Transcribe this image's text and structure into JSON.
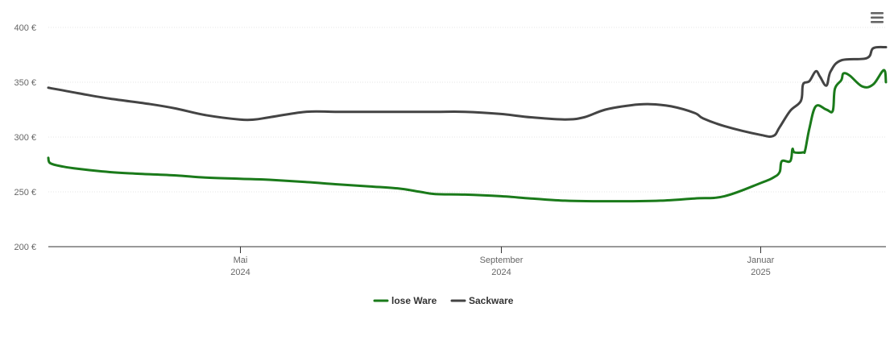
{
  "menu": {
    "icon": "hamburger-menu-icon"
  },
  "chart_data": {
    "type": "line",
    "title": "",
    "xlabel": "",
    "ylabel": "",
    "y_unit": "€",
    "ylim": [
      200,
      400
    ],
    "y_ticks": [
      {
        "value": 200,
        "label": "200 €"
      },
      {
        "value": 250,
        "label": "250 €"
      },
      {
        "value": 300,
        "label": "300 €"
      },
      {
        "value": 350,
        "label": "350 €"
      },
      {
        "value": 400,
        "label": "400 €"
      }
    ],
    "xlim": [
      "2024-02-01",
      "2025-03-01"
    ],
    "x_ticks": [
      {
        "date": "2024-05-01",
        "label": "Mai",
        "sublabel": "2024"
      },
      {
        "date": "2024-09-01",
        "label": "September",
        "sublabel": "2024"
      },
      {
        "date": "2025-01-01",
        "label": "Januar",
        "sublabel": "2025"
      }
    ],
    "grid": true,
    "legend_position": "bottom-center",
    "series": [
      {
        "name": "lose Ware",
        "color": "#1a7a1a",
        "points": [
          [
            "2024-02-01",
            281
          ],
          [
            "2024-02-02",
            276
          ],
          [
            "2024-02-08",
            273
          ],
          [
            "2024-02-15",
            271
          ],
          [
            "2024-03-01",
            268
          ],
          [
            "2024-03-15",
            266.5
          ],
          [
            "2024-04-01",
            265
          ],
          [
            "2024-04-15",
            263
          ],
          [
            "2024-05-01",
            262
          ],
          [
            "2024-05-15",
            261
          ],
          [
            "2024-06-01",
            259
          ],
          [
            "2024-06-15",
            257
          ],
          [
            "2024-07-01",
            255
          ],
          [
            "2024-07-15",
            253
          ],
          [
            "2024-07-25",
            250
          ],
          [
            "2024-08-01",
            248
          ],
          [
            "2024-08-15",
            247.5
          ],
          [
            "2024-09-01",
            246
          ],
          [
            "2024-09-15",
            244
          ],
          [
            "2024-10-01",
            242
          ],
          [
            "2024-10-15",
            241.5
          ],
          [
            "2024-11-01",
            241.5
          ],
          [
            "2024-11-15",
            242
          ],
          [
            "2024-12-01",
            244
          ],
          [
            "2024-12-15",
            246
          ],
          [
            "2025-01-01",
            258
          ],
          [
            "2025-01-07",
            263
          ],
          [
            "2025-01-10",
            268
          ],
          [
            "2025-01-11",
            278
          ],
          [
            "2025-01-15",
            278
          ],
          [
            "2025-01-16",
            289
          ],
          [
            "2025-01-17",
            286
          ],
          [
            "2025-01-21",
            286
          ],
          [
            "2025-01-22",
            288
          ],
          [
            "2025-01-24",
            308
          ],
          [
            "2025-01-27",
            328
          ],
          [
            "2025-02-01",
            325
          ],
          [
            "2025-02-04",
            324
          ],
          [
            "2025-02-05",
            344
          ],
          [
            "2025-02-08",
            352
          ],
          [
            "2025-02-09",
            358
          ],
          [
            "2025-02-12",
            356
          ],
          [
            "2025-02-18",
            346
          ],
          [
            "2025-02-23",
            348
          ],
          [
            "2025-02-28",
            361
          ],
          [
            "2025-03-01",
            350
          ]
        ]
      },
      {
        "name": "Sackware",
        "color": "#444444",
        "points": [
          [
            "2024-02-01",
            345
          ],
          [
            "2024-02-15",
            340
          ],
          [
            "2024-03-01",
            335
          ],
          [
            "2024-03-20",
            330
          ],
          [
            "2024-04-01",
            326
          ],
          [
            "2024-04-15",
            320
          ],
          [
            "2024-05-01",
            316
          ],
          [
            "2024-05-08",
            316
          ],
          [
            "2024-05-15",
            318
          ],
          [
            "2024-06-01",
            323
          ],
          [
            "2024-06-15",
            323
          ],
          [
            "2024-07-01",
            323
          ],
          [
            "2024-07-15",
            323
          ],
          [
            "2024-08-01",
            323
          ],
          [
            "2024-08-15",
            323
          ],
          [
            "2024-09-01",
            321
          ],
          [
            "2024-09-15",
            318
          ],
          [
            "2024-10-01",
            316
          ],
          [
            "2024-10-10",
            318
          ],
          [
            "2024-10-20",
            325
          ],
          [
            "2024-11-01",
            329
          ],
          [
            "2024-11-10",
            330
          ],
          [
            "2024-11-20",
            328
          ],
          [
            "2024-12-01",
            322
          ],
          [
            "2024-12-05",
            317
          ],
          [
            "2024-12-15",
            310
          ],
          [
            "2025-01-01",
            302
          ],
          [
            "2025-01-07",
            301
          ],
          [
            "2025-01-10",
            309
          ],
          [
            "2025-01-15",
            324
          ],
          [
            "2025-01-20",
            333
          ],
          [
            "2025-01-21",
            348
          ],
          [
            "2025-01-24",
            351
          ],
          [
            "2025-01-27",
            360
          ],
          [
            "2025-01-29",
            355
          ],
          [
            "2025-02-01",
            347
          ],
          [
            "2025-02-03",
            360
          ],
          [
            "2025-02-08",
            370
          ],
          [
            "2025-02-20",
            372
          ],
          [
            "2025-02-23",
            381
          ],
          [
            "2025-03-01",
            382
          ]
        ]
      }
    ]
  }
}
